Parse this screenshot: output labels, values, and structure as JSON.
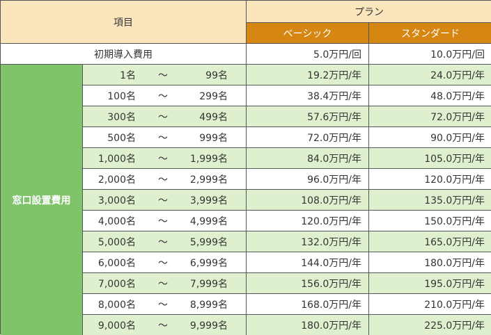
{
  "header": {
    "item_label": "項目",
    "plan_label": "プラン",
    "basic_label": "ベーシック",
    "standard_label": "スタンダード"
  },
  "initial_fee": {
    "label": "初期導入費用",
    "basic": "5.0万円/回",
    "standard": "10.0万円/回"
  },
  "window_fee": {
    "label": "窓口設置費用",
    "tilde": "～",
    "rows": [
      {
        "from": "1名",
        "to": "99名",
        "basic": "19.2万円/年",
        "standard": "24.0万円/年"
      },
      {
        "from": "100名",
        "to": "299名",
        "basic": "38.4万円/年",
        "standard": "48.0万円/年"
      },
      {
        "from": "300名",
        "to": "499名",
        "basic": "57.6万円/年",
        "standard": "72.0万円/年"
      },
      {
        "from": "500名",
        "to": "999名",
        "basic": "72.0万円/年",
        "standard": "90.0万円/年"
      },
      {
        "from": "1,000名",
        "to": "1,999名",
        "basic": "84.0万円/年",
        "standard": "105.0万円/年"
      },
      {
        "from": "2,000名",
        "to": "2,999名",
        "basic": "96.0万円/年",
        "standard": "120.0万円/年"
      },
      {
        "from": "3,000名",
        "to": "3,999名",
        "basic": "108.0万円/年",
        "standard": "135.0万円/年"
      },
      {
        "from": "4,000名",
        "to": "4,999名",
        "basic": "120.0万円/年",
        "standard": "150.0万円/年"
      },
      {
        "from": "5,000名",
        "to": "5,999名",
        "basic": "132.0万円/年",
        "standard": "165.0万円/年"
      },
      {
        "from": "6,000名",
        "to": "6,999名",
        "basic": "144.0万円/年",
        "standard": "180.0万円/年"
      },
      {
        "from": "7,000名",
        "to": "7,999名",
        "basic": "156.0万円/年",
        "standard": "195.0万円/年"
      },
      {
        "from": "8,000名",
        "to": "8,999名",
        "basic": "168.0万円/年",
        "standard": "210.0万円/年"
      },
      {
        "from": "9,000名",
        "to": "9,999名",
        "basic": "180.0万円/年",
        "standard": "225.0万円/年"
      }
    ]
  },
  "colors": {
    "header_bg": "#fbe5bc",
    "plan_header_bg": "#d58613",
    "side_bg": "#7fc36a",
    "alt_row_bg": "#dff0cf"
  }
}
